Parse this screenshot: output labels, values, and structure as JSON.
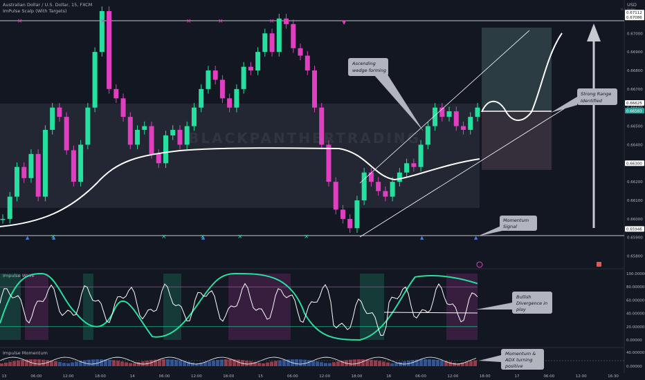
{
  "header": {
    "symbol_line": "Australian Dollar / U.S. Dollar, 15, FXCM",
    "indicator": "ImPulse Scalp (With Targets)",
    "currency": "USD",
    "subcurrency": "U.S. Dollar"
  },
  "panels": {
    "wave_label": "Impulse Wave",
    "momentum_label": "Impulse Momentum"
  },
  "price_axis": {
    "ticks": [
      "0.67000",
      "0.66900",
      "0.66800",
      "0.66700",
      "0.66600",
      "0.66500",
      "0.66400",
      "0.66300",
      "0.66200",
      "0.66100",
      "0.66000",
      "0.65900",
      "0.65800"
    ],
    "badges": [
      {
        "value": "0.67112",
        "color": "#ffffff",
        "text_color": "#131722"
      },
      {
        "value": "0.67086",
        "color": "#ffffff",
        "text_color": "#131722"
      },
      {
        "value": "0.66625",
        "color": "#ffffff",
        "text_color": "#131722"
      },
      {
        "value": "0.66583",
        "color": "#26a69a",
        "text_color": "#ffffff"
      },
      {
        "value": "0.66300",
        "color": "#ffffff",
        "text_color": "#131722"
      },
      {
        "value": "0.65946",
        "color": "#ffffff",
        "text_color": "#131722"
      }
    ]
  },
  "wave_axis": {
    "ticks": [
      "100.00000",
      "80.00000",
      "60.00000",
      "40.00000",
      "20.00000",
      "0.00000"
    ]
  },
  "momentum_axis": {
    "ticks": [
      "40.00000",
      "0.00000"
    ]
  },
  "time_axis": {
    "ticks": [
      "13",
      "06:00",
      "12:00",
      "18:00",
      "14",
      "06:00",
      "12:00",
      "18:00",
      "15",
      "06:00",
      "12:00",
      "18:00",
      "16",
      "06:00",
      "12:00",
      "18:00",
      "17",
      "06:00",
      "12:00",
      "16:30"
    ]
  },
  "annotations": {
    "wedge": "Ascending wedge forming",
    "range": "Strong Range Identified",
    "momentum_signal": "Momentum Signal",
    "divergence": "Bullish Divergence in play",
    "adx": "Momentum & ADX turning positive"
  },
  "watermark": "BLACKPANTHERTRADING",
  "colors": {
    "bull": "#26e0a0",
    "bear": "#e040c0",
    "range_box": "#2a2e39",
    "callout": "#b2b5be",
    "background": "#131722"
  },
  "chart_data": {
    "type": "line",
    "title": "",
    "series": [
      {
        "name": "",
        "values": [
          0.66,
          0.6612,
          0.6628,
          0.6622,
          0.6635,
          0.6612,
          0.6648,
          0.666,
          0.6655,
          0.6637,
          0.662,
          0.664,
          0.666,
          0.669,
          0.6712,
          0.667,
          0.6665,
          0.6655,
          0.664,
          0.6648,
          0.665,
          0.6635,
          0.663,
          0.6645,
          0.6648,
          0.664,
          0.665,
          0.666,
          0.667,
          0.668,
          0.6675,
          0.6665,
          0.666,
          0.667,
          0.6682,
          0.668,
          0.669,
          0.67,
          0.669,
          0.6708,
          0.6705,
          0.6692,
          0.6688,
          0.668,
          0.666,
          0.664,
          0.662,
          0.6605,
          0.66,
          0.6595,
          0.661,
          0.6625,
          0.662,
          0.6615,
          0.6612,
          0.662,
          0.6625,
          0.663,
          0.6628,
          0.664,
          0.665,
          0.666,
          0.6655,
          0.6658,
          0.665,
          0.6648,
          0.6655,
          0.666
        ]
      }
    ],
    "price_range": [
      0.6575,
      0.6715
    ],
    "targets": {
      "upper": 0.67112,
      "box_top": 0.67086,
      "range_mid": 0.66625,
      "current": 0.66583,
      "box_bottom": 0.663,
      "lower": 0.65946
    },
    "wave_range": [
      0,
      100
    ],
    "momentum_range": [
      0,
      40
    ]
  }
}
